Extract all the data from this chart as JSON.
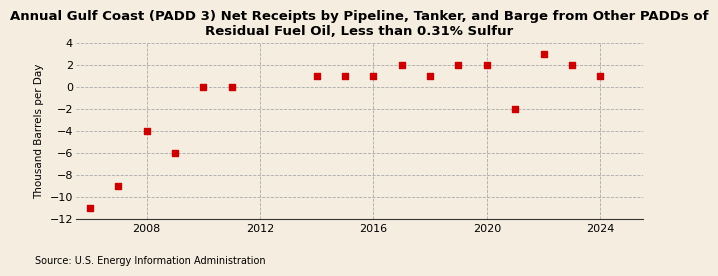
{
  "title": "Annual Gulf Coast (PADD 3) Net Receipts by Pipeline, Tanker, and Barge from Other PADDs of\nResidual Fuel Oil, Less than 0.31% Sulfur",
  "ylabel": "Thousand Barrels per Day",
  "source": "Source: U.S. Energy Information Administration",
  "background_color": "#f5ede0",
  "years": [
    2006,
    2007,
    2008,
    2009,
    2010,
    2011,
    2014,
    2015,
    2016,
    2017,
    2018,
    2019,
    2020,
    2021,
    2022,
    2023,
    2024
  ],
  "values": [
    -11,
    -9,
    -4,
    -6,
    0,
    0,
    1,
    1,
    1,
    2,
    1,
    2,
    2,
    -2,
    3,
    2,
    1
  ],
  "marker_color": "#cc0000",
  "ylim": [
    -12,
    4
  ],
  "yticks": [
    -12,
    -10,
    -8,
    -6,
    -4,
    -2,
    0,
    2,
    4
  ],
  "xlim": [
    2005.5,
    2025.5
  ],
  "xticks": [
    2008,
    2012,
    2016,
    2020,
    2024
  ],
  "title_fontsize": 9.5,
  "label_fontsize": 7.5,
  "tick_fontsize": 8
}
